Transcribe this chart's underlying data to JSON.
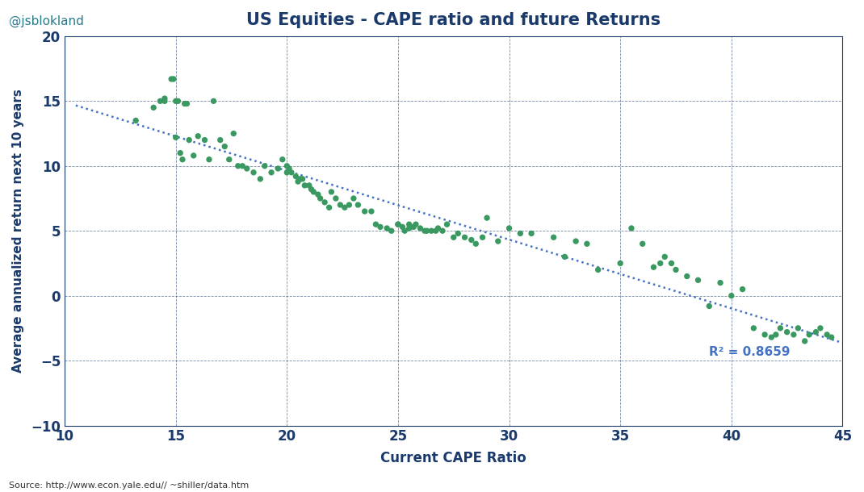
{
  "title": "US Equities - CAPE ratio and future Returns",
  "xlabel": "Current CAPE Ratio",
  "ylabel": "Average annualized return next 10 years",
  "watermark": "@jsblokland",
  "source": "Source: http://www.econ.yale.edu// ~shiller/data.htm",
  "r2_text": "R² = 0.8659",
  "xlim": [
    10,
    45
  ],
  "ylim": [
    -10,
    20
  ],
  "xticks": [
    10,
    15,
    20,
    25,
    30,
    35,
    40,
    45
  ],
  "yticks": [
    -10,
    -5,
    0,
    5,
    10,
    15,
    20
  ],
  "dot_color": "#3a9960",
  "line_color": "#4472c4",
  "bg_color": "#ffffff",
  "grid_color": "#1f3864",
  "scatter_x": [
    13.2,
    14.0,
    14.3,
    14.5,
    14.5,
    14.8,
    14.9,
    15.0,
    15.0,
    15.1,
    15.2,
    15.3,
    15.4,
    15.5,
    15.6,
    15.8,
    16.0,
    16.3,
    16.5,
    16.7,
    17.0,
    17.2,
    17.4,
    17.6,
    17.8,
    18.0,
    18.2,
    18.5,
    18.8,
    19.0,
    19.3,
    19.6,
    19.8,
    20.0,
    20.0,
    20.1,
    20.2,
    20.4,
    20.5,
    20.6,
    20.7,
    20.8,
    21.0,
    21.1,
    21.2,
    21.4,
    21.5,
    21.7,
    21.9,
    22.0,
    22.2,
    22.4,
    22.6,
    22.8,
    23.0,
    23.2,
    23.5,
    23.8,
    24.0,
    24.2,
    24.5,
    24.7,
    25.0,
    25.0,
    25.2,
    25.3,
    25.5,
    25.5,
    25.7,
    25.8,
    26.0,
    26.2,
    26.3,
    26.5,
    26.7,
    26.8,
    27.0,
    27.2,
    27.5,
    27.7,
    28.0,
    28.3,
    28.5,
    28.8,
    29.0,
    29.5,
    30.0,
    30.5,
    31.0,
    32.0,
    32.5,
    33.0,
    33.5,
    34.0,
    35.0,
    35.5,
    36.0,
    36.5,
    36.8,
    37.0,
    37.3,
    37.5,
    38.0,
    38.5,
    39.0,
    39.5,
    40.0,
    40.5,
    41.0,
    41.5,
    41.8,
    42.0,
    42.2,
    42.5,
    42.8,
    43.0,
    43.3,
    43.5,
    43.8,
    44.0,
    44.3,
    44.5
  ],
  "scatter_y": [
    13.5,
    14.5,
    15.0,
    15.0,
    15.2,
    16.7,
    16.7,
    12.2,
    15.0,
    15.0,
    11.0,
    10.5,
    14.8,
    14.8,
    12.0,
    10.8,
    12.3,
    12.0,
    10.5,
    15.0,
    12.0,
    11.5,
    10.5,
    12.5,
    10.0,
    10.0,
    9.8,
    9.5,
    9.0,
    10.0,
    9.5,
    9.8,
    10.5,
    10.0,
    9.5,
    9.8,
    9.5,
    9.2,
    8.8,
    9.0,
    9.0,
    8.5,
    8.5,
    8.2,
    8.0,
    7.8,
    7.5,
    7.2,
    6.8,
    8.0,
    7.5,
    7.0,
    6.8,
    7.0,
    7.5,
    7.0,
    6.5,
    6.5,
    5.5,
    5.3,
    5.2,
    5.0,
    5.5,
    5.5,
    5.3,
    5.0,
    5.5,
    5.2,
    5.3,
    5.5,
    5.2,
    5.0,
    5.0,
    5.0,
    5.0,
    5.2,
    5.0,
    5.5,
    4.5,
    4.8,
    4.5,
    4.3,
    4.0,
    4.5,
    6.0,
    4.2,
    5.2,
    4.8,
    4.8,
    4.5,
    3.0,
    4.2,
    4.0,
    2.0,
    2.5,
    5.2,
    4.0,
    2.2,
    2.5,
    3.0,
    2.5,
    2.0,
    1.5,
    1.2,
    -0.8,
    1.0,
    0.0,
    0.5,
    -2.5,
    -3.0,
    -3.2,
    -3.0,
    -2.5,
    -2.8,
    -3.0,
    -2.5,
    -3.5,
    -3.0,
    -2.8,
    -2.5,
    -3.0,
    -3.2
  ],
  "trendline_slope": -0.488,
  "trendline_intercept": 19.5
}
